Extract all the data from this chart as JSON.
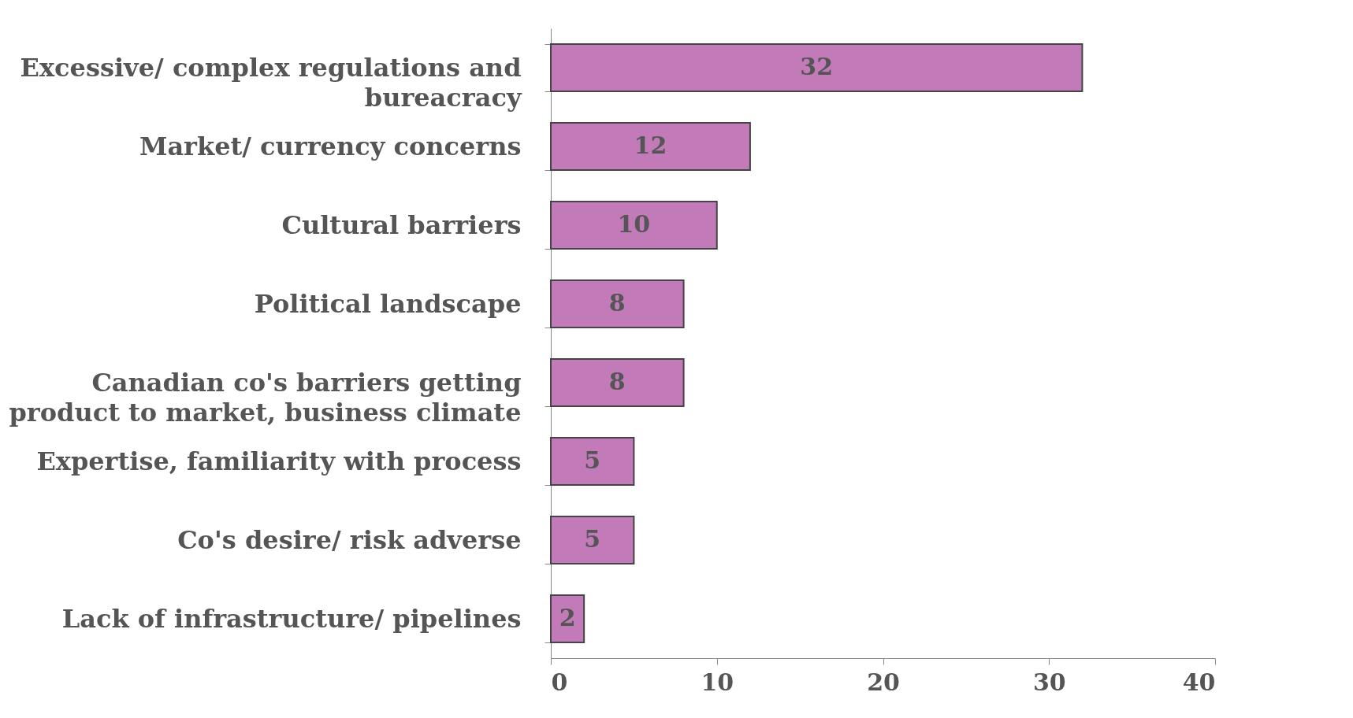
{
  "chart_data": {
    "type": "bar",
    "orientation": "horizontal",
    "categories": [
      "Excessive/ complex regulations and bureacracy",
      "Market/ currency concerns",
      "Cultural barriers",
      "Political landscape",
      "Canadian co's barriers getting product to market, business climate",
      "Expertise, familiarity with process",
      "Co's desire/ risk adverse",
      "Lack of infrastructure/ pipelines"
    ],
    "values": [
      32,
      12,
      10,
      8,
      8,
      5,
      5,
      2
    ],
    "color": "#c27bb8",
    "xlim": [
      0,
      40
    ],
    "xticks": [
      0,
      10,
      20,
      30,
      40
    ],
    "data_labels": true
  }
}
